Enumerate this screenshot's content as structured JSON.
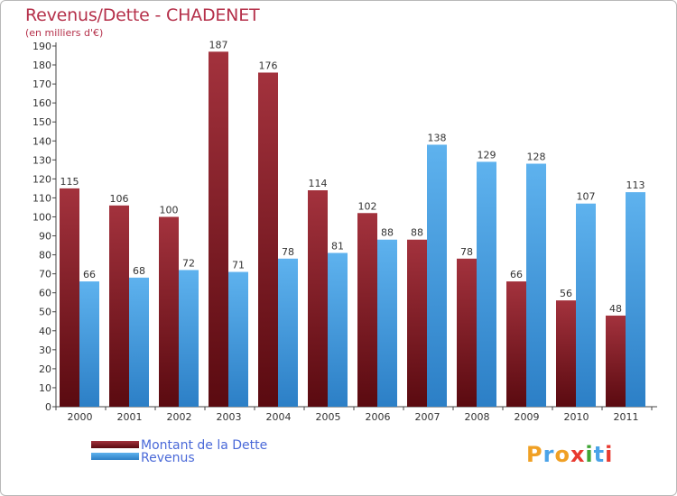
{
  "header": {
    "title": "Revenus/Dette - CHADENET",
    "subtitle": "(en milliers d'€)"
  },
  "colors": {
    "dette": "#8b1c28",
    "revenus": "#4aa3e8",
    "text": "#333333",
    "title": "#b5304a",
    "legend_text": "#4a69d8"
  },
  "legend": {
    "dette_label": "Montant de la Dette",
    "revenus_label": "Revenus"
  },
  "logo": {
    "text": "Proxiti"
  },
  "chart_data": {
    "type": "bar",
    "title": "Revenus/Dette - CHADENET",
    "ylabel": "(en milliers d'€)",
    "xlabel": "",
    "categories": [
      "2000",
      "2001",
      "2002",
      "2003",
      "2004",
      "2005",
      "2006",
      "2007",
      "2008",
      "2009",
      "2010",
      "2011"
    ],
    "series": [
      {
        "name": "Montant de la Dette",
        "values": [
          115,
          106,
          100,
          187,
          176,
          114,
          102,
          88,
          78,
          66,
          56,
          48
        ]
      },
      {
        "name": "Revenus",
        "values": [
          66,
          68,
          72,
          71,
          78,
          81,
          88,
          138,
          129,
          128,
          107,
          113
        ]
      }
    ],
    "ylim": [
      0,
      190
    ],
    "ytick_step": 10,
    "grid": false,
    "legend_position": "bottom-left"
  }
}
